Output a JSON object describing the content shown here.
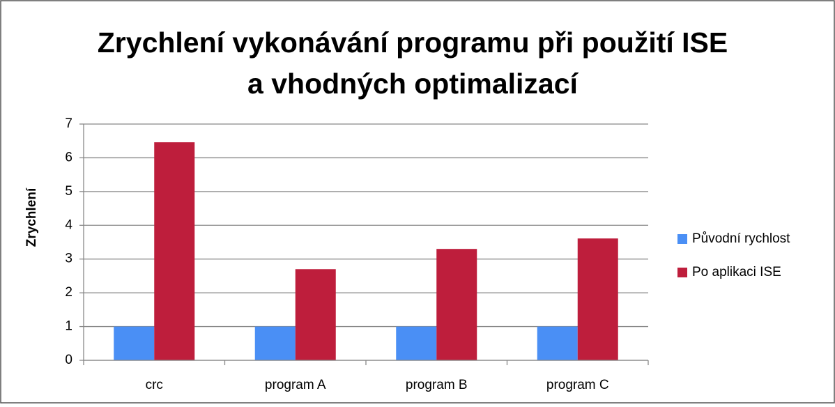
{
  "chart_data": {
    "type": "bar",
    "title": [
      "Zrychlení vykonávání programu při použití ISE",
      "a vhodných optimalizací"
    ],
    "y_label": "Zrychlení",
    "categories": [
      "crc",
      "program A",
      "program B",
      "program C"
    ],
    "series": [
      {
        "name": "Původní rychlost",
        "color": "#4a8ff5",
        "values": [
          1,
          1,
          1,
          1
        ]
      },
      {
        "name": "Po aplikaci ISE",
        "color": "#be1e3c",
        "values": [
          6.46,
          2.7,
          3.3,
          3.61
        ]
      }
    ],
    "ylim": [
      0,
      7
    ],
    "yticks": [
      0,
      1,
      2,
      3,
      4,
      5,
      6,
      7
    ],
    "grid": true,
    "legend": "right"
  }
}
